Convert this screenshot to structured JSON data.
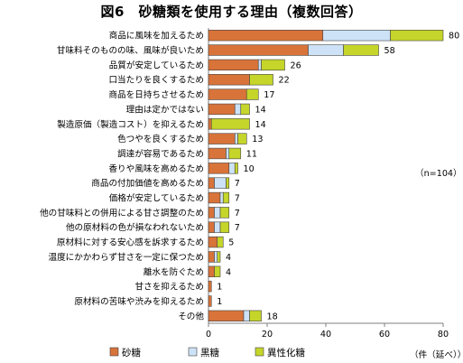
{
  "chart_data": {
    "type": "bar",
    "orientation": "horizontal",
    "stacked": true,
    "title": "図6　砂糖類を使用する理由（複数回答）",
    "categories": [
      "商品に風味を加えるため",
      "甘味料そのものの味、風味が良いため",
      "品質が安定しているため",
      "口当たりを良くするため",
      "商品を日持ちさせるため",
      "理由は定かではない",
      "製造原価（製造コスト）を抑えるため",
      "色つやを良くするため",
      "調達が容易であるため",
      "香りや風味を高めるため",
      "商品の付加価値を高めるため",
      "価格が安定しているため",
      "他の甘味料との併用による甘さ調整のため",
      "他の原材料の色が損なわれないため",
      "原材料に対する安心感を訴求するため",
      "温度にかかわらず甘さを一定に保つため",
      "離水を防ぐため",
      "甘さを抑えるため",
      "原材料の苦味や渋みを抑えるため",
      "その他"
    ],
    "series": [
      {
        "name": "砂糖",
        "values": [
          39,
          34,
          17,
          14,
          13,
          9,
          1,
          9,
          6,
          7,
          2,
          4,
          2,
          2,
          3,
          2,
          2,
          1,
          1,
          12
        ]
      },
      {
        "name": "黒糖",
        "values": [
          23,
          12,
          1,
          0,
          0,
          2,
          0,
          1,
          1,
          2,
          4,
          1,
          2,
          2,
          0,
          1,
          0,
          0,
          0,
          2
        ]
      },
      {
        "name": "異性化糖",
        "values": [
          18,
          12,
          8,
          8,
          4,
          3,
          13,
          3,
          4,
          1,
          1,
          2,
          3,
          3,
          2,
          1,
          2,
          0,
          0,
          4
        ]
      }
    ],
    "totals": [
      80,
      58,
      26,
      22,
      17,
      14,
      14,
      13,
      11,
      10,
      7,
      7,
      7,
      7,
      5,
      4,
      4,
      1,
      1,
      18
    ],
    "colors": [
      "#d8733a",
      "#cde2f6",
      "#c5d52a"
    ],
    "xlim": [
      0,
      80
    ],
    "xticks": [
      0,
      20,
      40,
      60,
      80
    ],
    "xlabel": "（件（延べ））",
    "annotation": "（n=104）",
    "legend_position": "bottom"
  }
}
